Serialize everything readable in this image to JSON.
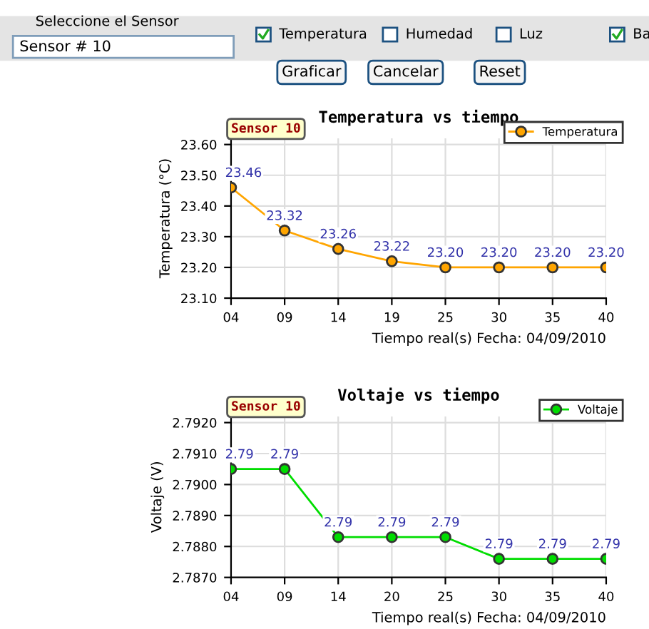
{
  "chart_data": [
    {
      "type": "other",
      "annotations": [
        "Seleccione el Sensor",
        "Sensor # 10",
        "Temperatura",
        "Humedad",
        "Luz",
        "Ba",
        "Graficar",
        "Cancelar",
        "Reset"
      ]
    },
    {
      "type": "line",
      "title": "Temperatura vs tiempo",
      "xlabel": "Tiempo real(s) Fecha: 04/09/2010",
      "ylabel": "Temperatura (°C)",
      "annotations": [
        "Sensor 10"
      ],
      "categories": [
        "04",
        "09",
        "14",
        "19",
        "25",
        "30",
        "35",
        "40"
      ],
      "series": [
        {
          "name": "Temperatura",
          "color": "#ffa500",
          "values": [
            23.46,
            23.32,
            23.26,
            23.22,
            23.2,
            23.2,
            23.2,
            23.2
          ],
          "value_labels": [
            "23.46",
            "23.32",
            "23.26",
            "23.22",
            "23.20",
            "23.20",
            "23.20",
            "23.20"
          ]
        }
      ],
      "ylim": [
        23.1,
        23.62
      ],
      "yticks": [
        {
          "value": 23.1,
          "label": "23.10"
        },
        {
          "value": 23.2,
          "label": "23.20"
        },
        {
          "value": 23.3,
          "label": "23.30"
        },
        {
          "value": 23.4,
          "label": "23.40"
        },
        {
          "value": 23.5,
          "label": "23.50"
        },
        {
          "value": 23.6,
          "label": "23.60"
        }
      ],
      "grid": true,
      "legend": "top right",
      "marker": "circle",
      "line_style": "solid"
    },
    {
      "type": "line",
      "title": "Voltaje vs tiempo",
      "xlabel": "Tiempo real(s) Fecha: 04/09/2010",
      "ylabel": "Voltaje (V)",
      "annotations": [
        "Sensor 10"
      ],
      "categories": [
        "04",
        "09",
        "14",
        "20",
        "25",
        "30",
        "35",
        "40"
      ],
      "series": [
        {
          "name": "Voltaje",
          "color": "#00dd00",
          "values": [
            2.7905,
            2.7905,
            2.7883,
            2.7883,
            2.7883,
            2.7876,
            2.7876,
            2.7876
          ],
          "value_labels": [
            "2.79",
            "2.79",
            "2.79",
            "2.79",
            "2.79",
            "2.79",
            "2.79",
            "2.79"
          ]
        }
      ],
      "ylim": [
        2.787,
        2.7922
      ],
      "yticks": [
        {
          "value": 2.787,
          "label": "2.7870"
        },
        {
          "value": 2.788,
          "label": "2.7880"
        },
        {
          "value": 2.789,
          "label": "2.7890"
        },
        {
          "value": 2.79,
          "label": "2.7900"
        },
        {
          "value": 2.791,
          "label": "2.7910"
        },
        {
          "value": 2.792,
          "label": "2.7920"
        }
      ],
      "grid": true,
      "legend": "top right",
      "marker": "circle",
      "line_style": "solid"
    }
  ]
}
